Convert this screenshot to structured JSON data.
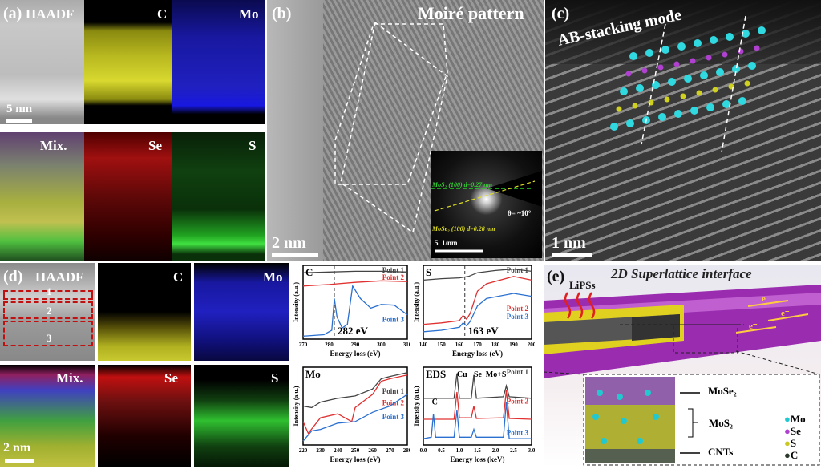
{
  "panel_a": {
    "label": "(a)",
    "tiles": [
      "HAADF",
      "C",
      "Mo",
      "Mix.",
      "Se",
      "S"
    ],
    "scale": "5 nm"
  },
  "panel_b": {
    "label": "(b)",
    "title": "Moiré pattern",
    "scale": "2 nm",
    "inset": {
      "mos2": "MoS₂ (100) d=0.27 nm",
      "mose2": "MoSe₂ (100) d=0.28 nm",
      "theta": "θ= ~10°",
      "scale": "5  1/nm"
    }
  },
  "panel_c": {
    "label": "(c)",
    "title": "AB-stacking mode",
    "scale": "1 nm"
  },
  "panel_d": {
    "label": "(d)",
    "tiles": [
      "HAADF",
      "C",
      "Mo",
      "Mix.",
      "Se",
      "S"
    ],
    "points": [
      "1",
      "2",
      "3"
    ],
    "scale": "2 nm"
  },
  "panel_e": {
    "label": "(e)",
    "title": "2D Superlattice interface",
    "lipss": "LiPSs",
    "electron": "e⁻",
    "layers": [
      "MoSe₂",
      "MoS₂",
      "CNTs"
    ],
    "legend": [
      {
        "name": "Mo",
        "color": "#22c8d0"
      },
      {
        "name": "Se",
        "color": "#b040d0"
      },
      {
        "name": "S",
        "color": "#c8c820"
      },
      {
        "name": "C",
        "color": "#2a3a2a"
      }
    ]
  },
  "chart_data": [
    {
      "type": "line",
      "title": "C",
      "xlabel": "Energy loss (eV)",
      "ylabel": "Intensity (a.u.)",
      "xlim": [
        270,
        310
      ],
      "xticks": [
        270,
        280,
        290,
        300,
        310
      ],
      "marker": 282,
      "annotation": "282 eV",
      "series": [
        {
          "name": "Point 1",
          "color": "#444444",
          "x": [
            270,
            280,
            290,
            300,
            310
          ],
          "y": [
            0.9,
            0.91,
            0.92,
            0.92,
            0.91
          ]
        },
        {
          "name": "Point 2",
          "color": "#e03030",
          "x": [
            270,
            280,
            290,
            300,
            310
          ],
          "y": [
            0.72,
            0.74,
            0.77,
            0.79,
            0.78
          ]
        },
        {
          "name": "Point 3",
          "color": "#2a70d0",
          "x": [
            270,
            278,
            281,
            282,
            283,
            285,
            287,
            289,
            292,
            296,
            300,
            305,
            310
          ],
          "y": [
            0.04,
            0.06,
            0.12,
            0.55,
            0.3,
            0.15,
            0.2,
            0.72,
            0.55,
            0.42,
            0.47,
            0.46,
            0.33
          ]
        }
      ]
    },
    {
      "type": "line",
      "title": "S",
      "xlabel": "Energy loss (eV)",
      "ylabel": "Intensity (a.u.)",
      "xlim": [
        140,
        200
      ],
      "xticks": [
        140,
        150,
        160,
        170,
        180,
        190,
        200
      ],
      "marker": 163,
      "annotation": "163 eV",
      "series": [
        {
          "name": "Point 1",
          "color": "#444444",
          "x": [
            140,
            150,
            160,
            165,
            170,
            180,
            190,
            200
          ],
          "y": [
            0.8,
            0.82,
            0.83,
            0.85,
            0.9,
            0.93,
            0.95,
            0.92
          ]
        },
        {
          "name": "Point 2",
          "color": "#e03030",
          "x": [
            140,
            150,
            160,
            162,
            164,
            166,
            170,
            175,
            190,
            200
          ],
          "y": [
            0.2,
            0.22,
            0.25,
            0.32,
            0.27,
            0.35,
            0.65,
            0.75,
            0.85,
            0.8
          ]
        },
        {
          "name": "Point 3",
          "color": "#2a70d0",
          "x": [
            140,
            150,
            160,
            162,
            164,
            166,
            170,
            175,
            190,
            200
          ],
          "y": [
            0.1,
            0.12,
            0.16,
            0.22,
            0.18,
            0.24,
            0.45,
            0.55,
            0.62,
            0.58
          ]
        }
      ]
    },
    {
      "type": "line",
      "title": "Mo",
      "xlabel": "Energy loss (eV)",
      "ylabel": "Intensity (a.u.)",
      "xlim": [
        220,
        280
      ],
      "xticks": [
        220,
        230,
        240,
        250,
        260,
        270,
        280
      ],
      "series": [
        {
          "name": "Point 1",
          "color": "#444444",
          "x": [
            220,
            225,
            230,
            240,
            250,
            260,
            265,
            270,
            280
          ],
          "y": [
            0.5,
            0.48,
            0.55,
            0.6,
            0.63,
            0.72,
            0.85,
            0.88,
            0.93
          ]
        },
        {
          "name": "Point 2",
          "color": "#e03030",
          "x": [
            220,
            223,
            230,
            240,
            248,
            250,
            260,
            265,
            270,
            280
          ],
          "y": [
            0.3,
            0.15,
            0.35,
            0.4,
            0.3,
            0.48,
            0.65,
            0.82,
            0.85,
            0.9
          ]
        },
        {
          "name": "Point 3",
          "color": "#2a70d0",
          "x": [
            220,
            225,
            230,
            240,
            250,
            260,
            270,
            280
          ],
          "y": [
            0.05,
            0.18,
            0.2,
            0.28,
            0.3,
            0.42,
            0.5,
            0.65
          ]
        }
      ]
    },
    {
      "type": "line",
      "title": "EDS",
      "xlabel": "Energy loss (keV)",
      "ylabel": "Intensity (a.u.)",
      "xlim": [
        0,
        3
      ],
      "xticks": [
        0.0,
        0.5,
        1.0,
        1.5,
        2.0,
        2.5,
        3.0
      ],
      "peaks": [
        "C",
        "Cu",
        "Se",
        "Mo+S"
      ],
      "series": [
        {
          "name": "Point 1",
          "color": "#444444",
          "x": [
            0,
            0.85,
            0.93,
            1.0,
            1.33,
            1.4,
            1.47,
            2.22,
            2.3,
            2.38,
            3
          ],
          "y": [
            0.6,
            0.6,
            0.92,
            0.6,
            0.6,
            0.9,
            0.6,
            0.62,
            0.76,
            0.62,
            0.6
          ]
        },
        {
          "name": "Point 2",
          "color": "#e03030",
          "x": [
            0,
            0.85,
            0.93,
            1.0,
            1.33,
            1.4,
            1.47,
            2.22,
            2.3,
            2.38,
            3
          ],
          "y": [
            0.33,
            0.33,
            0.68,
            0.35,
            0.35,
            0.5,
            0.34,
            0.35,
            0.7,
            0.34,
            0.33
          ]
        },
        {
          "name": "Point 3",
          "color": "#2a70d0",
          "x": [
            0,
            0.22,
            0.28,
            0.34,
            0.85,
            0.93,
            1.0,
            1.33,
            1.4,
            1.47,
            2.22,
            2.3,
            2.38,
            3
          ],
          "y": [
            0.08,
            0.1,
            0.4,
            0.1,
            0.1,
            0.45,
            0.1,
            0.1,
            0.2,
            0.1,
            0.1,
            0.55,
            0.08,
            0.08
          ]
        }
      ]
    }
  ]
}
